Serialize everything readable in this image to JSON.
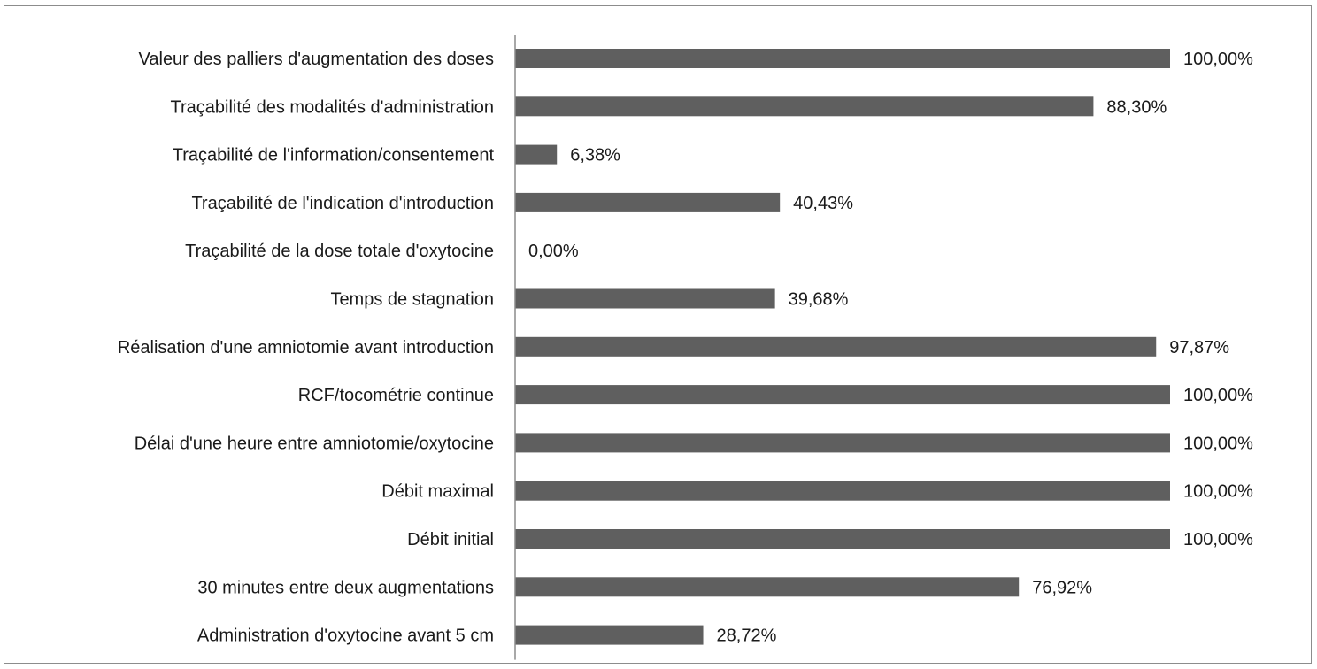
{
  "chart_data": {
    "type": "bar",
    "orientation": "horizontal",
    "title": "",
    "xlabel": "",
    "ylabel": "",
    "xlim": [
      0,
      100
    ],
    "grid": false,
    "legend": "none",
    "bar_color": "#5f5f5f",
    "categories": [
      "Valeur des palliers d'augmentation des doses",
      "Traçabilité des modalités d'administration",
      "Traçabilité de l'information/consentement",
      "Traçabilité de l'indication d'introduction",
      "Traçabilité de la dose totale d'oxytocine",
      "Temps de stagnation",
      "Réalisation d'une amniotomie avant introduction",
      "RCF/tocométrie continue",
      "Délai d'une heure entre amniotomie/oxytocine",
      "Débit maximal",
      "Débit initial",
      "30 minutes entre deux augmentations",
      "Administration d'oxytocine avant 5 cm"
    ],
    "values": [
      100.0,
      88.3,
      6.38,
      40.43,
      0.0,
      39.68,
      97.87,
      100.0,
      100.0,
      100.0,
      100.0,
      76.92,
      28.72
    ],
    "value_labels": [
      "100,00%",
      "88,30%",
      "6,38%",
      "40,43%",
      "0,00%",
      "39,68%",
      "97,87%",
      "100,00%",
      "100,00%",
      "100,00%",
      "100,00%",
      "76,92%",
      "28,72%"
    ]
  }
}
